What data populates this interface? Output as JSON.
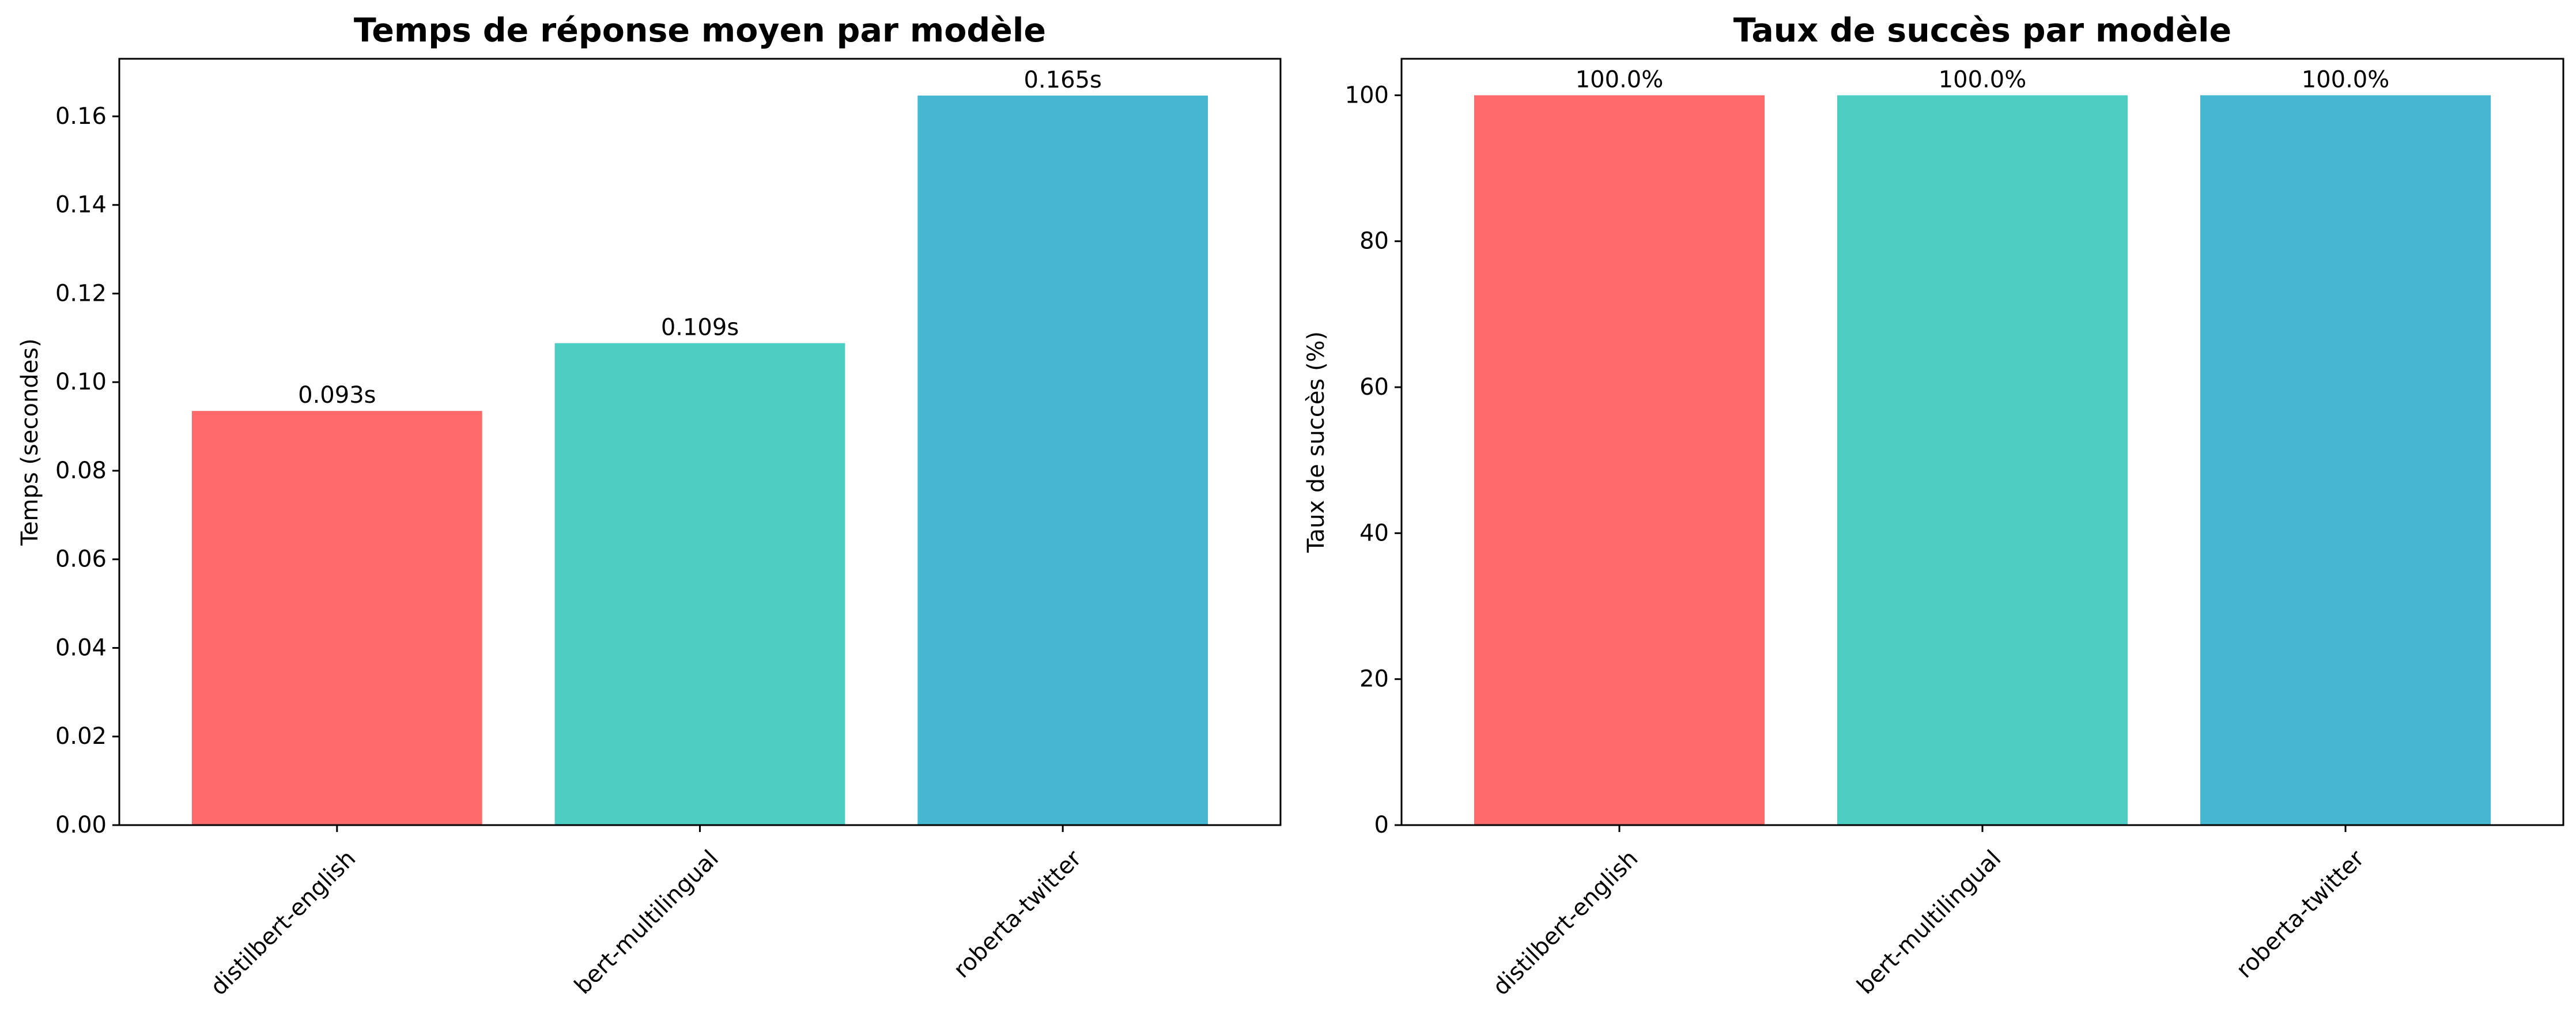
{
  "chart_data": [
    {
      "type": "bar",
      "title": "Temps de réponse moyen par modèle",
      "xlabel": "",
      "ylabel": "Temps (secondes)",
      "categories": [
        "distilbert-english",
        "bert-multilingual",
        "roberta-twitter"
      ],
      "values": [
        0.0935,
        0.1088,
        0.1647
      ],
      "value_labels": [
        "0.093s",
        "0.109s",
        "0.165s"
      ],
      "bar_colors": [
        "#ff6b6b",
        "#4ecdc4",
        "#45b7d1"
      ],
      "ylim": [
        0,
        0.173
      ],
      "yticks": [
        0.0,
        0.02,
        0.04,
        0.06,
        0.08,
        0.1,
        0.12,
        0.14,
        0.16
      ],
      "ytick_labels": [
        "0.00",
        "0.02",
        "0.04",
        "0.06",
        "0.08",
        "0.10",
        "0.12",
        "0.14",
        "0.16"
      ],
      "grid": false,
      "xtick_rotation": 45
    },
    {
      "type": "bar",
      "title": "Taux de succès par modèle",
      "xlabel": "",
      "ylabel": "Taux de succès (%)",
      "categories": [
        "distilbert-english",
        "bert-multilingual",
        "roberta-twitter"
      ],
      "values": [
        100.0,
        100.0,
        100.0
      ],
      "value_labels": [
        "100.0%",
        "100.0%",
        "100.0%"
      ],
      "bar_colors": [
        "#ff6b6b",
        "#4ecdc4",
        "#45b7d1"
      ],
      "ylim": [
        0,
        105
      ],
      "yticks": [
        0,
        20,
        40,
        60,
        80,
        100
      ],
      "ytick_labels": [
        "0",
        "20",
        "40",
        "60",
        "80",
        "100"
      ],
      "grid": false,
      "xtick_rotation": 45
    }
  ]
}
